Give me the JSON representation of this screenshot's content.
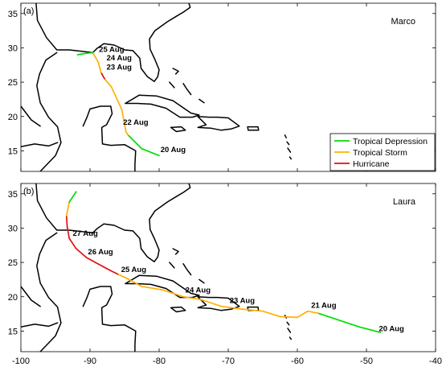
{
  "colors": {
    "tropical_depression": "#00dd00",
    "tropical_storm": "#ffb000",
    "hurricane": "#e01010",
    "coast": "#000000"
  },
  "panels": [
    {
      "letter": "(a)",
      "storm": "Marco",
      "show_legend": true,
      "track": [
        {
          "lon": -80.0,
          "lat": 14.3,
          "cat": "tropical_depression"
        },
        {
          "lon": -82.5,
          "lat": 15.3,
          "cat": "tropical_depression"
        },
        {
          "lon": -84.5,
          "lat": 17.3,
          "cat": "tropical_depression"
        },
        {
          "lon": -84.8,
          "lat": 17.8,
          "cat": "tropical_storm"
        },
        {
          "lon": -85.4,
          "lat": 21.0,
          "cat": "tropical_storm"
        },
        {
          "lon": -86.9,
          "lat": 24.3,
          "cat": "tropical_storm"
        },
        {
          "lon": -87.9,
          "lat": 25.5,
          "cat": "tropical_storm"
        },
        {
          "lon": -88.4,
          "lat": 26.4,
          "cat": "hurricane"
        },
        {
          "lon": -88.8,
          "lat": 27.9,
          "cat": "tropical_storm"
        },
        {
          "lon": -89.6,
          "lat": 29.3,
          "cat": "tropical_storm"
        },
        {
          "lon": -90.6,
          "lat": 29.2,
          "cat": "tropical_depression"
        },
        {
          "lon": -91.8,
          "lat": 29.0,
          "cat": "tropical_depression"
        }
      ],
      "date_labels": [
        {
          "text": "20 Aug",
          "lon": -79.8,
          "lat": 14.8
        },
        {
          "text": "22 Aug",
          "lon": -85.2,
          "lat": 18.8
        },
        {
          "text": "23 Aug",
          "lon": -87.6,
          "lat": 26.8
        },
        {
          "text": "24 Aug",
          "lon": -87.6,
          "lat": 28.2
        },
        {
          "text": "25 Aug",
          "lon": -88.7,
          "lat": 29.4
        }
      ]
    },
    {
      "letter": "(b)",
      "storm": "Laura",
      "show_legend": false,
      "track": [
        {
          "lon": -48.0,
          "lat": 14.8,
          "cat": "tropical_depression"
        },
        {
          "lon": -51.0,
          "lat": 15.6,
          "cat": "tropical_depression"
        },
        {
          "lon": -54.0,
          "lat": 16.6,
          "cat": "tropical_depression"
        },
        {
          "lon": -57.0,
          "lat": 17.6,
          "cat": "tropical_depression"
        },
        {
          "lon": -58.5,
          "lat": 17.9,
          "cat": "tropical_storm"
        },
        {
          "lon": -60.0,
          "lat": 17.0,
          "cat": "tropical_storm"
        },
        {
          "lon": -62.5,
          "lat": 17.1,
          "cat": "tropical_storm"
        },
        {
          "lon": -65.0,
          "lat": 17.9,
          "cat": "tropical_storm"
        },
        {
          "lon": -68.0,
          "lat": 18.2,
          "cat": "tropical_storm"
        },
        {
          "lon": -71.0,
          "lat": 18.6,
          "cat": "tropical_storm"
        },
        {
          "lon": -74.0,
          "lat": 19.6,
          "cat": "tropical_storm"
        },
        {
          "lon": -76.5,
          "lat": 20.0,
          "cat": "tropical_storm"
        },
        {
          "lon": -79.5,
          "lat": 21.0,
          "cat": "tropical_storm"
        },
        {
          "lon": -82.5,
          "lat": 21.5,
          "cat": "tropical_storm"
        },
        {
          "lon": -84.5,
          "lat": 22.6,
          "cat": "tropical_storm"
        },
        {
          "lon": -86.0,
          "lat": 23.3,
          "cat": "tropical_storm"
        },
        {
          "lon": -87.0,
          "lat": 23.8,
          "cat": "hurricane"
        },
        {
          "lon": -88.5,
          "lat": 24.6,
          "cat": "hurricane"
        },
        {
          "lon": -90.5,
          "lat": 25.7,
          "cat": "hurricane"
        },
        {
          "lon": -92.0,
          "lat": 27.0,
          "cat": "hurricane"
        },
        {
          "lon": -93.0,
          "lat": 28.5,
          "cat": "hurricane"
        },
        {
          "lon": -93.3,
          "lat": 30.2,
          "cat": "hurricane"
        },
        {
          "lon": -93.4,
          "lat": 31.8,
          "cat": "hurricane"
        },
        {
          "lon": -93.0,
          "lat": 33.8,
          "cat": "tropical_storm"
        },
        {
          "lon": -92.0,
          "lat": 35.3,
          "cat": "tropical_depression"
        }
      ],
      "date_labels": [
        {
          "text": "20 Aug",
          "lon": -48.2,
          "lat": 15.0
        },
        {
          "text": "21 Aug",
          "lon": -58.0,
          "lat": 18.4
        },
        {
          "text": "23 Aug",
          "lon": -69.8,
          "lat": 19.1
        },
        {
          "text": "24 Aug",
          "lon": -76.2,
          "lat": 20.6
        },
        {
          "text": "25 Aug",
          "lon": -85.5,
          "lat": 23.6
        },
        {
          "text": "26 Aug",
          "lon": -90.3,
          "lat": 26.2
        },
        {
          "text": "27 Aug",
          "lon": -92.5,
          "lat": 28.9
        }
      ]
    }
  ],
  "axes": {
    "x_ticks": [
      "-100",
      "-90",
      "-80",
      "-70",
      "-60",
      "-50",
      "-40"
    ],
    "y_ticks": [
      "15",
      "20",
      "25",
      "30",
      "35"
    ],
    "xlim": [
      -100,
      -40
    ],
    "ylim": [
      12,
      36.5
    ]
  },
  "legend": {
    "position": "bottom-right",
    "entries": [
      {
        "label": "Tropical Depression",
        "cat": "tropical_depression"
      },
      {
        "label": "Tropical Storm",
        "cat": "tropical_storm"
      },
      {
        "label": "Hurricane",
        "cat": "hurricane"
      }
    ]
  },
  "coastlines": [
    [
      [
        -97.8,
        36.5
      ],
      [
        -97.6,
        34.0
      ],
      [
        -96.3,
        31.5
      ],
      [
        -94.8,
        29.7
      ],
      [
        -93.0,
        29.7
      ],
      [
        -91.2,
        29.5
      ],
      [
        -89.6,
        29.3
      ],
      [
        -89.0,
        29.9
      ],
      [
        -88.0,
        30.6
      ],
      [
        -86.5,
        30.4
      ],
      [
        -85.0,
        29.7
      ],
      [
        -83.8,
        29.6
      ],
      [
        -82.8,
        28.5
      ],
      [
        -82.6,
        27.0
      ],
      [
        -81.7,
        25.8
      ],
      [
        -80.7,
        25.1
      ],
      [
        -80.2,
        25.8
      ],
      [
        -80.0,
        26.8
      ],
      [
        -80.6,
        28.3
      ],
      [
        -81.3,
        29.8
      ],
      [
        -81.4,
        31.3
      ],
      [
        -80.6,
        32.5
      ],
      [
        -78.8,
        33.8
      ],
      [
        -77.5,
        34.6
      ],
      [
        -76.5,
        35.2
      ],
      [
        -75.5,
        35.9
      ],
      [
        -75.7,
        36.5
      ]
    ],
    [
      [
        -97.2,
        12.0
      ],
      [
        -95.0,
        14.3
      ],
      [
        -94.2,
        16.2
      ],
      [
        -94.7,
        18.5
      ],
      [
        -96.0,
        19.9
      ],
      [
        -97.2,
        22.0
      ],
      [
        -97.7,
        24.5
      ],
      [
        -97.3,
        26.2
      ],
      [
        -96.4,
        28.2
      ],
      [
        -94.8,
        29.3
      ]
    ],
    [
      [
        -91.0,
        18.6
      ],
      [
        -90.4,
        20.0
      ],
      [
        -90.0,
        21.1
      ],
      [
        -88.5,
        21.5
      ],
      [
        -87.0,
        21.5
      ],
      [
        -86.8,
        20.4
      ],
      [
        -87.6,
        18.8
      ],
      [
        -88.3,
        18.4
      ],
      [
        -88.2,
        16.0
      ],
      [
        -87.0,
        15.8
      ],
      [
        -85.0,
        15.9
      ],
      [
        -83.4,
        15.0
      ],
      [
        -83.5,
        13.0
      ],
      [
        -83.5,
        12.0
      ]
    ],
    [
      [
        -84.9,
        21.9
      ],
      [
        -82.9,
        23.1
      ],
      [
        -80.4,
        23.0
      ],
      [
        -78.0,
        22.3
      ],
      [
        -75.4,
        20.5
      ],
      [
        -74.2,
        20.2
      ],
      [
        -75.2,
        19.9
      ],
      [
        -77.0,
        19.9
      ],
      [
        -79.0,
        21.2
      ],
      [
        -81.2,
        21.8
      ],
      [
        -83.2,
        21.9
      ],
      [
        -84.9,
        21.9
      ]
    ],
    [
      [
        -74.4,
        20.0
      ],
      [
        -72.8,
        19.9
      ],
      [
        -71.6,
        19.9
      ],
      [
        -70.0,
        19.8
      ],
      [
        -68.4,
        18.6
      ],
      [
        -69.5,
        18.2
      ],
      [
        -71.0,
        18.0
      ],
      [
        -72.5,
        18.3
      ],
      [
        -74.4,
        18.4
      ],
      [
        -73.2,
        18.8
      ],
      [
        -74.4,
        20.0
      ]
    ],
    [
      [
        -78.3,
        18.4
      ],
      [
        -76.8,
        18.5
      ],
      [
        -76.2,
        18.0
      ],
      [
        -77.5,
        17.8
      ],
      [
        -78.3,
        18.4
      ]
    ],
    [
      [
        -67.2,
        18.5
      ],
      [
        -65.7,
        18.5
      ],
      [
        -65.6,
        18.0
      ],
      [
        -67.1,
        18.0
      ],
      [
        -67.2,
        18.5
      ]
    ],
    [
      [
        -100,
        21.5
      ],
      [
        -98.5,
        19.5
      ],
      [
        -97.2,
        18.6
      ]
    ],
    [
      [
        -100,
        15.6
      ],
      [
        -98.0,
        16.0
      ],
      [
        -96.0,
        15.7
      ],
      [
        -94.7,
        16.2
      ]
    ],
    [
      [
        -78.0,
        27.0
      ],
      [
        -77.2,
        26.6
      ],
      [
        -77.6,
        26.2
      ]
    ],
    [
      [
        -78.5,
        25.0
      ],
      [
        -77.8,
        24.2
      ]
    ],
    [
      [
        -76.5,
        24.8
      ],
      [
        -76.0,
        24.0
      ],
      [
        -75.4,
        23.2
      ]
    ],
    [
      [
        -74.2,
        22.5
      ],
      [
        -73.5,
        22.0
      ]
    ],
    [
      [
        -61.8,
        17.3
      ],
      [
        -61.6,
        16.9
      ]
    ],
    [
      [
        -61.5,
        16.3
      ],
      [
        -61.2,
        15.9
      ]
    ],
    [
      [
        -61.4,
        15.4
      ],
      [
        -61.0,
        14.8
      ]
    ],
    [
      [
        -61.1,
        14.1
      ],
      [
        -60.9,
        13.8
      ]
    ]
  ]
}
